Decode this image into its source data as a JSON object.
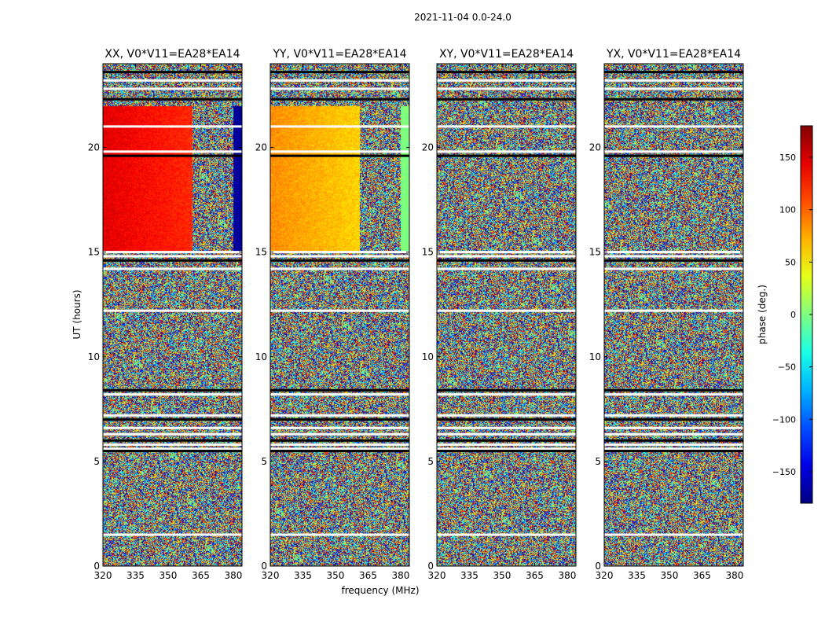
{
  "suptitle": "2021-11-04 0.0-24.0",
  "xlabel": "frequency (MHz)",
  "ylabel": "UT (hours)",
  "colorbar": {
    "label": "phase (deg.)",
    "range": [
      -180,
      180
    ],
    "ticks": [
      150,
      100,
      50,
      0,
      -50,
      -100,
      -150
    ],
    "tick_labels": [
      "150",
      "100",
      "50",
      "0",
      "−50",
      "−100",
      "−150"
    ],
    "colormap": "jet"
  },
  "chart_data": {
    "type": "heatmap",
    "x": {
      "label": "frequency (MHz)",
      "range": [
        320,
        384
      ],
      "ticks": [
        320,
        335,
        350,
        365,
        380
      ],
      "tick_labels": [
        "320",
        "335",
        "350",
        "365",
        "380"
      ]
    },
    "y": {
      "label": "UT (hours)",
      "range": [
        0,
        24
      ],
      "ticks": [
        0,
        5,
        10,
        15,
        20
      ],
      "tick_labels": [
        "0",
        "5",
        "10",
        "15",
        "20"
      ]
    },
    "value_label": "phase (deg.)",
    "value_range": [
      -180,
      180
    ],
    "panels": [
      {
        "title": "XX, V0*V11=EA28*EA14",
        "coherent_phase_deg": 145,
        "coherent_edge_deg": -170
      },
      {
        "title": "YY, V0*V11=EA28*EA14",
        "coherent_phase_deg": 85,
        "coherent_edge_deg": 0
      },
      {
        "title": "XY, V0*V11=EA28*EA14",
        "coherent_phase_deg": null,
        "coherent_edge_deg": null
      },
      {
        "title": "YX, V0*V11=EA28*EA14",
        "coherent_phase_deg": null,
        "coherent_edge_deg": null
      }
    ],
    "coherent_region": {
      "ut_hours": [
        15,
        22
      ],
      "freq_mhz": [
        320,
        361
      ]
    },
    "flagged_ut_hours": [
      22.3,
      22.8,
      23.2,
      23.6,
      21.0,
      19.8,
      19.6,
      15.0,
      14.8,
      14.6,
      14.2,
      12.2,
      8.4,
      8.2,
      7.2,
      7.0,
      6.6,
      6.3,
      6.0,
      5.8,
      5.6,
      5.5,
      1.5
    ]
  }
}
